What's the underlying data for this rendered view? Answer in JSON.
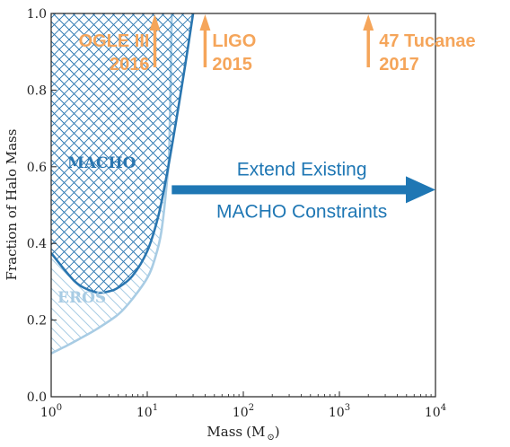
{
  "chart_data": {
    "type": "area",
    "title": "",
    "xlabel": "Mass",
    "xlabel_unit": "(M",
    "xlabel_unit_symbol": "⊙",
    "xlabel_unit_close": ")",
    "ylabel": "Fraction of Halo Mass",
    "xscale": "log",
    "xlim": [
      1,
      10000
    ],
    "ylim": [
      0.0,
      1.0
    ],
    "grid": false,
    "x_ticks": [
      {
        "value": 1,
        "base": "10",
        "exp": "0"
      },
      {
        "value": 10,
        "base": "10",
        "exp": "1"
      },
      {
        "value": 100,
        "base": "10",
        "exp": "2"
      },
      {
        "value": 1000,
        "base": "10",
        "exp": "3"
      },
      {
        "value": 10000,
        "base": "10",
        "exp": "4"
      }
    ],
    "y_ticks": [
      {
        "value": 0.0,
        "label": "0.0"
      },
      {
        "value": 0.2,
        "label": "0.2"
      },
      {
        "value": 0.4,
        "label": "0.4"
      },
      {
        "value": 0.6,
        "label": "0.6"
      },
      {
        "value": 0.8,
        "label": "0.8"
      },
      {
        "value": 1.0,
        "label": "1.0"
      }
    ],
    "regions": [
      {
        "name": "EROS",
        "color": "#a8cce4",
        "hatch": "diagonal-down",
        "boundary": [
          {
            "x": 1.0,
            "y": 0.113
          },
          {
            "x": 1.5,
            "y": 0.135
          },
          {
            "x": 2.0,
            "y": 0.152
          },
          {
            "x": 3.0,
            "y": 0.177
          },
          {
            "x": 5.0,
            "y": 0.215
          },
          {
            "x": 7.0,
            "y": 0.255
          },
          {
            "x": 10.0,
            "y": 0.31
          },
          {
            "x": 12.0,
            "y": 0.36
          },
          {
            "x": 14.0,
            "y": 0.43
          },
          {
            "x": 16.0,
            "y": 0.56
          },
          {
            "x": 17.0,
            "y": 0.66
          },
          {
            "x": 18.0,
            "y": 1.0
          }
        ]
      },
      {
        "name": "MACHO",
        "color": "#2a76b0",
        "hatch": "crosshatch",
        "boundary": [
          {
            "x": 1.0,
            "y": 0.375
          },
          {
            "x": 1.5,
            "y": 0.32
          },
          {
            "x": 2.0,
            "y": 0.29
          },
          {
            "x": 3.0,
            "y": 0.272
          },
          {
            "x": 4.0,
            "y": 0.275
          },
          {
            "x": 5.0,
            "y": 0.285
          },
          {
            "x": 7.0,
            "y": 0.315
          },
          {
            "x": 10.0,
            "y": 0.38
          },
          {
            "x": 13.0,
            "y": 0.47
          },
          {
            "x": 16.0,
            "y": 0.58
          },
          {
            "x": 20.0,
            "y": 0.72
          },
          {
            "x": 25.0,
            "y": 0.87
          },
          {
            "x": 30.0,
            "y": 1.0
          }
        ]
      }
    ],
    "markers": [
      {
        "x": 12,
        "lines": [
          "OGLE III",
          "2016"
        ],
        "text_anchor": "end",
        "text_dx": -6
      },
      {
        "x": 40,
        "lines": [
          "LIGO",
          "2015"
        ],
        "text_anchor": "start",
        "text_dx": 8
      },
      {
        "x": 2000,
        "lines": [
          "47 Tucanae",
          "2017"
        ],
        "text_anchor": "start",
        "text_dx": 12
      }
    ],
    "marker_color": "#f5a55a",
    "big_arrow": {
      "from_x": 18,
      "to_x": 10000,
      "y": 0.54,
      "color": "#1f77b4",
      "label_lines": [
        "Extend Existing",
        "MACHO Constraints"
      ]
    }
  }
}
